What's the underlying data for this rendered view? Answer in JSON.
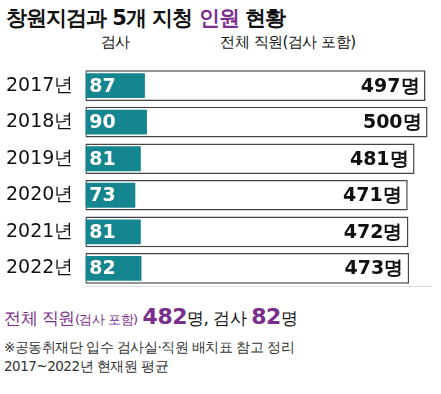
{
  "chart_data": {
    "type": "bar",
    "orientation": "horizontal",
    "title": "창원지검과 5개 지청 인원 현황",
    "title_highlight": "인원",
    "categories": [
      "2017년",
      "2018년",
      "2019년",
      "2020년",
      "2021년",
      "2022년"
    ],
    "series": [
      {
        "name": "검사",
        "color": "#15858f",
        "values": [
          87,
          90,
          81,
          73,
          81,
          82
        ]
      },
      {
        "name": "전체 직원(검사 포함)",
        "color": "#ffffff",
        "values": [
          497,
          500,
          481,
          471,
          472,
          473
        ],
        "value_labels": [
          "497명",
          "500명",
          "481명",
          "471명",
          "472명",
          "473명"
        ]
      }
    ],
    "xlim": [
      0,
      505
    ],
    "grid": false,
    "data_labels": true,
    "tick_labels": "y",
    "annotations": [
      "전체 직원(검사 포함) 482명, 검사 82명",
      "※공동취재단 입수 검사실·직원 배치표 참고 정리",
      "2017~2022년 현재원 평균"
    ]
  }
}
